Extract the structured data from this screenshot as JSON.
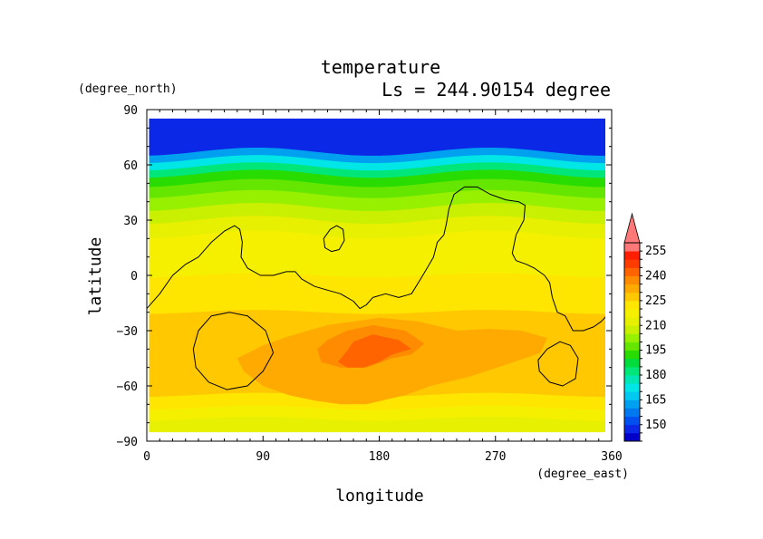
{
  "chart_data": {
    "type": "heatmap",
    "title": "temperature",
    "subtitle": "Ls = 244.90154 degree",
    "xlabel": "longitude",
    "ylabel": "latitude",
    "x_unit": "(degree_east)",
    "y_unit": "(degree_north)",
    "xlim": [
      0,
      360
    ],
    "ylim": [
      -90,
      90
    ],
    "x_ticks": [
      "0",
      "90",
      "180",
      "270",
      "360"
    ],
    "y_ticks": [
      "90",
      "60",
      "30",
      "0",
      "−30",
      "−60",
      "−90"
    ],
    "x_tick_values": [
      0,
      90,
      180,
      270,
      360
    ],
    "y_tick_values": [
      90,
      60,
      30,
      0,
      -30,
      -60,
      -90
    ],
    "colorbar": {
      "levels": [
        140,
        145,
        150,
        155,
        160,
        165,
        170,
        175,
        180,
        185,
        190,
        195,
        200,
        205,
        210,
        215,
        220,
        225,
        230,
        235,
        240,
        245,
        250,
        255,
        260
      ],
      "tick_labels": [
        "150",
        "165",
        "180",
        "195",
        "210",
        "225",
        "240",
        "255"
      ],
      "tick_values": [
        150,
        165,
        180,
        195,
        210,
        225,
        240,
        255
      ],
      "colors": [
        "#0000c8",
        "#0a28e6",
        "#0050f0",
        "#0078f0",
        "#00a0f0",
        "#00c8f0",
        "#00e6e6",
        "#00e6b4",
        "#00e678",
        "#00dc3c",
        "#28dc00",
        "#64e600",
        "#96f000",
        "#c8f000",
        "#e6f000",
        "#f5f000",
        "#ffe600",
        "#ffc800",
        "#ffaa00",
        "#ff8c00",
        "#ff6400",
        "#ff3c00",
        "#ff1e00",
        "#ff7878"
      ],
      "extend": "max"
    },
    "data_extent": {
      "lon": [
        2,
        356
      ],
      "lat": [
        -85,
        85
      ]
    },
    "temperature_bands": [
      {
        "lat_from": 85,
        "lat_to": 67,
        "value": 148
      },
      {
        "lat_from": 67,
        "lat_to": 63,
        "value": 160
      },
      {
        "lat_from": 63,
        "lat_to": 59,
        "value": 172
      },
      {
        "lat_from": 59,
        "lat_to": 55,
        "value": 182
      },
      {
        "lat_from": 55,
        "lat_to": 50,
        "value": 190
      },
      {
        "lat_from": 50,
        "lat_to": 44,
        "value": 197
      },
      {
        "lat_from": 44,
        "lat_to": 37,
        "value": 203
      },
      {
        "lat_from": 37,
        "lat_to": 30,
        "value": 208
      },
      {
        "lat_from": 30,
        "lat_to": 22,
        "value": 212
      },
      {
        "lat_from": 22,
        "lat_to": 12,
        "value": 216
      },
      {
        "lat_from": 12,
        "lat_to": 0,
        "value": 219
      },
      {
        "lat_from": 0,
        "lat_to": -20,
        "value": 222
      },
      {
        "lat_from": -20,
        "lat_to": -65,
        "value": 225
      },
      {
        "lat_from": -65,
        "lat_to": -72,
        "value": 221
      },
      {
        "lat_from": -72,
        "lat_to": -78,
        "value": 215
      },
      {
        "lat_from": -78,
        "lat_to": -85,
        "value": 210
      }
    ],
    "warm_regions": [
      {
        "value": 230,
        "points": [
          [
            70,
            -45
          ],
          [
            90,
            -38
          ],
          [
            110,
            -33
          ],
          [
            140,
            -27
          ],
          [
            180,
            -23
          ],
          [
            210,
            -25
          ],
          [
            240,
            -30
          ],
          [
            265,
            -29
          ],
          [
            290,
            -30
          ],
          [
            310,
            -34
          ],
          [
            305,
            -42
          ],
          [
            280,
            -48
          ],
          [
            250,
            -55
          ],
          [
            220,
            -60
          ],
          [
            200,
            -65
          ],
          [
            170,
            -70
          ],
          [
            150,
            -70
          ],
          [
            130,
            -68
          ],
          [
            110,
            -65
          ],
          [
            90,
            -60
          ],
          [
            75,
            -52
          ]
        ]
      },
      {
        "value": 236,
        "points": [
          [
            140,
            -35
          ],
          [
            155,
            -30
          ],
          [
            175,
            -27
          ],
          [
            200,
            -30
          ],
          [
            215,
            -37
          ],
          [
            205,
            -43
          ],
          [
            190,
            -45
          ],
          [
            170,
            -50
          ],
          [
            150,
            -50
          ],
          [
            135,
            -47
          ],
          [
            132,
            -40
          ]
        ]
      },
      {
        "value": 242,
        "points": [
          [
            160,
            -36
          ],
          [
            175,
            -32
          ],
          [
            195,
            -35
          ],
          [
            205,
            -40
          ],
          [
            190,
            -43
          ],
          [
            180,
            -47
          ],
          [
            168,
            -50
          ],
          [
            155,
            -50
          ],
          [
            148,
            -47
          ],
          [
            155,
            -41
          ]
        ]
      }
    ],
    "contours": [
      {
        "closed": false,
        "points": [
          [
            0,
            -18
          ],
          [
            10,
            -10
          ],
          [
            20,
            0
          ],
          [
            30,
            6
          ],
          [
            40,
            10
          ],
          [
            50,
            18
          ],
          [
            60,
            24
          ],
          [
            68,
            27
          ],
          [
            72,
            25
          ],
          [
            74,
            18
          ],
          [
            73,
            10
          ],
          [
            78,
            4
          ],
          [
            88,
            0
          ],
          [
            98,
            0
          ],
          [
            108,
            2
          ],
          [
            115,
            2
          ],
          [
            120,
            -2
          ],
          [
            130,
            -6
          ],
          [
            140,
            -8
          ],
          [
            150,
            -10
          ],
          [
            160,
            -14
          ],
          [
            165,
            -18
          ],
          [
            170,
            -16
          ],
          [
            175,
            -12
          ],
          [
            185,
            -10
          ],
          [
            195,
            -12
          ],
          [
            205,
            -10
          ],
          [
            212,
            -2
          ],
          [
            218,
            5
          ],
          [
            222,
            10
          ],
          [
            225,
            18
          ],
          [
            230,
            22
          ],
          [
            232,
            28
          ],
          [
            234,
            36
          ],
          [
            238,
            44
          ],
          [
            246,
            48
          ],
          [
            256,
            48
          ],
          [
            266,
            44
          ],
          [
            278,
            41
          ],
          [
            288,
            40
          ],
          [
            293,
            38
          ],
          [
            292,
            30
          ],
          [
            286,
            22
          ],
          [
            283,
            12
          ],
          [
            286,
            8
          ],
          [
            294,
            6
          ],
          [
            300,
            4
          ],
          [
            308,
            0
          ],
          [
            312,
            -4
          ],
          [
            314,
            -12
          ],
          [
            318,
            -20
          ],
          [
            324,
            -22
          ],
          [
            330,
            -30
          ],
          [
            338,
            -30
          ],
          [
            346,
            -28
          ],
          [
            352,
            -25
          ],
          [
            356,
            -22
          ]
        ]
      },
      {
        "closed": true,
        "points": [
          [
            137,
            20
          ],
          [
            142,
            25
          ],
          [
            147,
            27
          ],
          [
            152,
            25
          ],
          [
            153,
            19
          ],
          [
            149,
            14
          ],
          [
            143,
            13
          ],
          [
            138,
            15
          ]
        ]
      },
      {
        "closed": true,
        "points": [
          [
            64,
            -20
          ],
          [
            78,
            -22
          ],
          [
            92,
            -30
          ],
          [
            98,
            -42
          ],
          [
            90,
            -52
          ],
          [
            78,
            -60
          ],
          [
            62,
            -62
          ],
          [
            48,
            -58
          ],
          [
            38,
            -50
          ],
          [
            36,
            -40
          ],
          [
            40,
            -30
          ],
          [
            50,
            -22
          ]
        ]
      },
      {
        "closed": true,
        "points": [
          [
            310,
            -40
          ],
          [
            320,
            -36
          ],
          [
            328,
            -38
          ],
          [
            334,
            -45
          ],
          [
            332,
            -56
          ],
          [
            322,
            -60
          ],
          [
            312,
            -58
          ],
          [
            304,
            -52
          ],
          [
            303,
            -46
          ]
        ]
      }
    ]
  }
}
